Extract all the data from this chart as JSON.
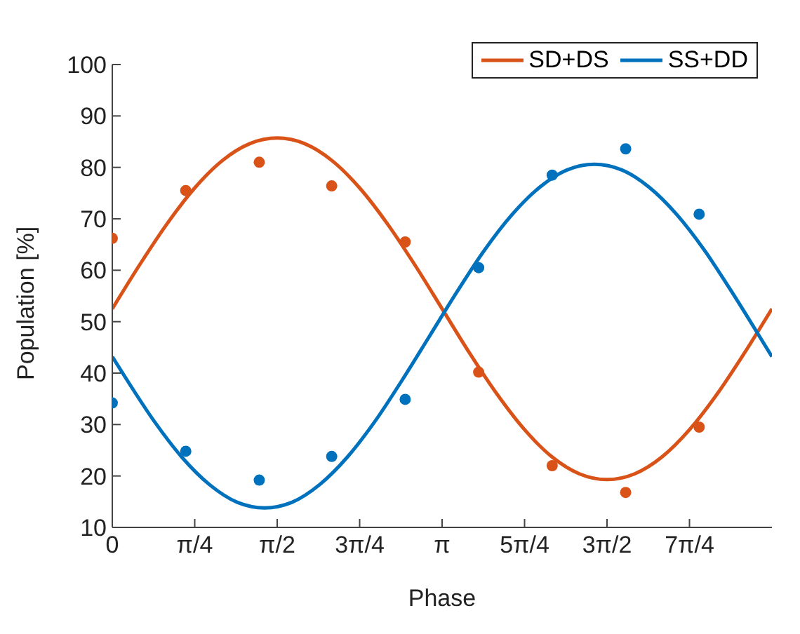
{
  "chart_data": {
    "type": "scatter",
    "xlabel": "Phase",
    "ylabel": "Population [%]",
    "xlim": [
      0,
      6.2832
    ],
    "ylim": [
      10,
      100
    ],
    "xticks": [
      0,
      {
        "value": 0.7854,
        "label": "π/4"
      },
      {
        "value": 1.5708,
        "label": "π/2"
      },
      {
        "value": 2.3562,
        "label": "3π/4"
      },
      {
        "value": 3.1416,
        "label": "π"
      },
      {
        "value": 3.927,
        "label": "5π/4"
      },
      {
        "value": 4.7124,
        "label": "3π/2"
      },
      {
        "value": 5.4978,
        "label": "7π/4"
      }
    ],
    "yticks": [
      10,
      20,
      30,
      40,
      50,
      60,
      70,
      80,
      90,
      100
    ],
    "x": [
      0,
      0.7,
      1.4,
      2.09,
      2.79,
      3.49,
      4.19,
      4.89,
      5.59
    ],
    "marker": "circle",
    "grid": false,
    "legend": "top right",
    "series": [
      {
        "color": "#d95319",
        "values": [
          66.2,
          75.5,
          81.0,
          76.4,
          65.5,
          40.2,
          22.0,
          16.8,
          29.5
        ]
      },
      {
        "color": "#0072bd",
        "values": [
          34.2,
          24.8,
          19.2,
          23.8,
          34.9,
          60.5,
          78.5,
          83.6,
          70.9
        ]
      },
      {
        "type": "line",
        "name": "SD+DS",
        "color": "#d95319",
        "marker": "none",
        "x": [
          0,
          0.262,
          0.524,
          0.785,
          1.047,
          1.309,
          1.571,
          1.833,
          2.094,
          2.356,
          2.618,
          2.88,
          3.142,
          3.403,
          3.665,
          3.927,
          4.189,
          4.451,
          4.712,
          4.974,
          5.236,
          5.498,
          5.76,
          6.021,
          6.283
        ],
        "values": [
          52.5,
          61.1,
          69.1,
          76.0,
          81.3,
          84.6,
          85.7,
          84.6,
          81.3,
          76.0,
          69.1,
          61.1,
          52.5,
          43.9,
          35.9,
          29.0,
          23.7,
          20.4,
          19.3,
          20.4,
          23.7,
          29.0,
          35.9,
          43.9,
          52.5
        ]
      },
      {
        "type": "line",
        "name": "SS+DD",
        "color": "#0072bd",
        "marker": "none",
        "x": [
          0,
          0.142,
          0.404,
          0.665,
          0.927,
          1.189,
          1.451,
          1.713,
          1.974,
          2.236,
          2.498,
          2.76,
          3.022,
          3.283,
          3.545,
          3.807,
          4.069,
          4.331,
          4.592,
          4.854,
          5.116,
          5.378,
          5.64,
          5.901,
          6.163,
          6.283
        ],
        "values": [
          43.2,
          38.6,
          30.5,
          23.6,
          18.3,
          14.9,
          13.8,
          14.9,
          18.3,
          23.6,
          30.5,
          38.6,
          47.2,
          55.8,
          63.9,
          70.8,
          76.1,
          79.5,
          80.6,
          79.5,
          76.1,
          70.8,
          63.9,
          55.8,
          47.2,
          43.2
        ]
      }
    ]
  }
}
